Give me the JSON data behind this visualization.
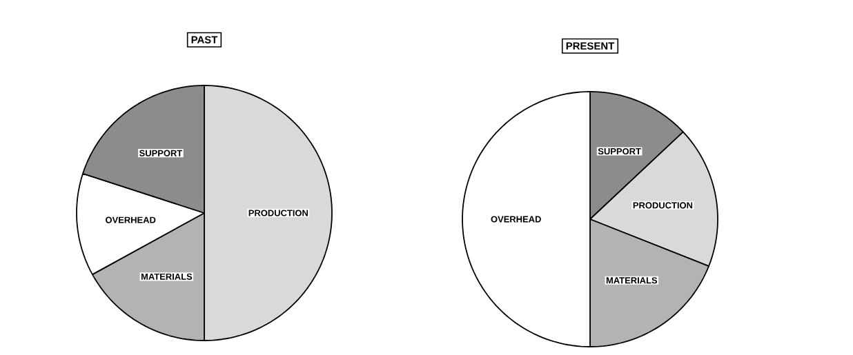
{
  "chart_data": [
    {
      "type": "pie",
      "title": "PAST",
      "categories": [
        "PRODUCTION",
        "MATERIALS",
        "OVERHEAD",
        "SUPPORT"
      ],
      "values": [
        50,
        17,
        13,
        20
      ],
      "colors": [
        "#d9d9d9",
        "#b3b3b3",
        "#ffffff",
        "#8c8c8c"
      ]
    },
    {
      "type": "pie",
      "title": "PRESENT",
      "categories": [
        "SUPPORT",
        "PRODUCTION",
        "MATERIALS",
        "OVERHEAD"
      ],
      "values": [
        13,
        18,
        19,
        50
      ],
      "colors": [
        "#8c8c8c",
        "#d9d9d9",
        "#b3b3b3",
        "#ffffff"
      ]
    }
  ]
}
